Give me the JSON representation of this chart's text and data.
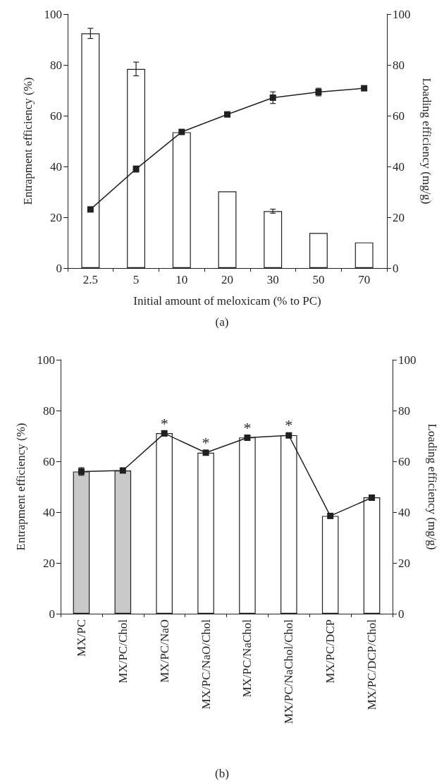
{
  "chart_data": [
    {
      "type": "bar",
      "title": "(a)",
      "xlabel": "Initial amount of meloxicam (% to PC)",
      "ylabel": "Entrapment efficiency (%)",
      "y2label": "Loading efficiency (mg/g)",
      "categories": [
        "2.5",
        "5",
        "10",
        "20",
        "30",
        "50",
        "70"
      ],
      "series": [
        {
          "color": "#ffffff",
          "values": [
            92.4,
            78.4,
            53.5,
            30.2,
            22.4,
            13.8,
            10.1
          ],
          "errors": [
            2,
            2.7,
            null,
            null,
            0.8,
            null,
            null
          ]
        },
        {
          "type": "line",
          "axis": "y2",
          "color": "#231f20",
          "values": [
            23.1,
            39,
            53.6,
            60.5,
            67.1,
            69.3,
            70.8
          ],
          "errors": [
            null,
            1.2,
            null,
            null,
            2.3,
            1.5,
            null
          ]
        }
      ],
      "ylim": [
        0,
        100
      ],
      "yticks": [
        0,
        20,
        40,
        60,
        80,
        100
      ],
      "y2lim": [
        0,
        100
      ],
      "y2ticks": [
        0,
        20,
        40,
        60,
        80,
        100
      ],
      "marker": "square"
    },
    {
      "type": "bar",
      "title": "(b)",
      "ylabel": "Entrapment efficiency (%)",
      "y2label": "Loading efficiency (mg/g)",
      "categories": [
        "MX/PC",
        "MX/PC/Chol",
        "MX/PC/NaO",
        "MX/PC/NaO/Chol",
        "MX/PC/NaChol",
        "MX/PC/NaChol/Chol",
        "MX/PC/DCP",
        "MX/PC/DCP/Chol"
      ],
      "series": [
        {
          "colors": [
            "#c8c9cb",
            "#c8c9cb",
            "#ffffff",
            "#ffffff",
            "#ffffff",
            "#ffffff",
            "#ffffff",
            "#ffffff"
          ],
          "values": [
            56,
            56.4,
            71.1,
            63.4,
            69.4,
            70.3,
            38.5,
            45.8
          ],
          "errors": [
            1.5,
            null,
            1,
            null,
            null,
            null,
            null,
            null
          ]
        },
        {
          "type": "line",
          "axis": "y2",
          "color": "#231f20",
          "values": [
            56,
            56.4,
            71,
            63.4,
            69.3,
            70.2,
            38.5,
            45.7
          ]
        }
      ],
      "annotations": [
        {
          "text": "*",
          "x": "MX/PC/NaO",
          "y": 71.1
        },
        {
          "text": "*",
          "x": "MX/PC/NaO/Chol",
          "y": 63.4
        },
        {
          "text": "*",
          "x": "MX/PC/NaChol",
          "y": 69.4
        },
        {
          "text": "*",
          "x": "MX/PC/NaChol/Chol",
          "y": 70.3
        }
      ],
      "ylim": [
        0,
        100
      ],
      "yticks": [
        0,
        20,
        40,
        60,
        80,
        100
      ],
      "y2lim": [
        0,
        100
      ],
      "y2ticks": [
        0,
        20,
        40,
        60,
        80,
        100
      ],
      "marker": "square"
    }
  ]
}
